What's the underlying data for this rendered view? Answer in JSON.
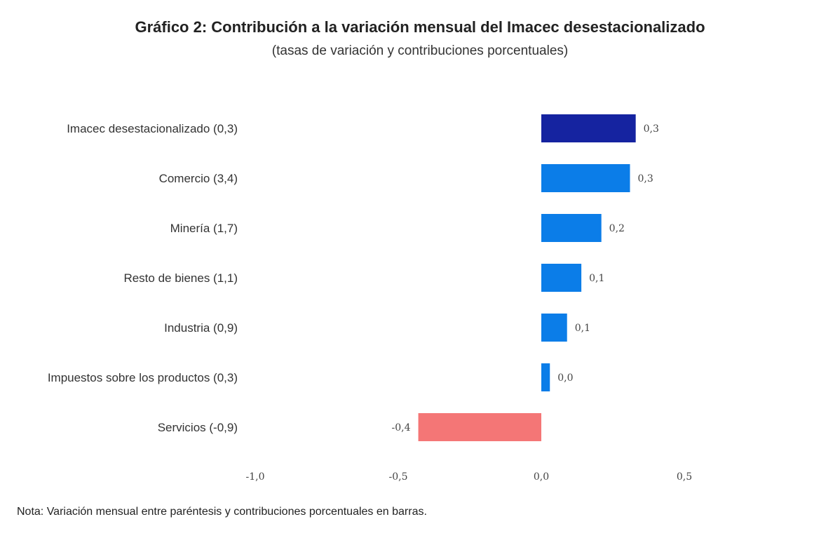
{
  "chart_data": {
    "type": "bar",
    "orientation": "horizontal",
    "title": "Gráfico 2: Contribución a la variación mensual del Imacec desestacionalizado",
    "subtitle": "(tasas de variación y contribuciones porcentuales)",
    "categories": [
      "Imacec desestacionalizado (0,3)",
      "Comercio (3,4)",
      "Minería (1,7)",
      "Resto de bienes (1,1)",
      "Industria (0,9)",
      "Impuestos sobre los productos (0,3)",
      "Servicios (-0,9)"
    ],
    "values": [
      0.33,
      0.31,
      0.21,
      0.14,
      0.09,
      0.03,
      -0.43
    ],
    "value_labels": [
      "0,3",
      "0,3",
      "0,2",
      "0,1",
      "0,1",
      "0,0",
      "-0,4"
    ],
    "bar_colors": [
      "#1523a0",
      "#0b7de8",
      "#0b7de8",
      "#0b7de8",
      "#0b7de8",
      "#0b7de8",
      "#f47676"
    ],
    "xlim": [
      -1.0,
      0.5
    ],
    "xticks": [
      -1.0,
      -0.5,
      0.0,
      0.5
    ],
    "xtick_labels": [
      "-1,0",
      "-0,5",
      "0,0",
      "0,5"
    ],
    "grid": false
  },
  "note": "Nota: Variación mensual entre paréntesis y contribuciones porcentuales en barras."
}
